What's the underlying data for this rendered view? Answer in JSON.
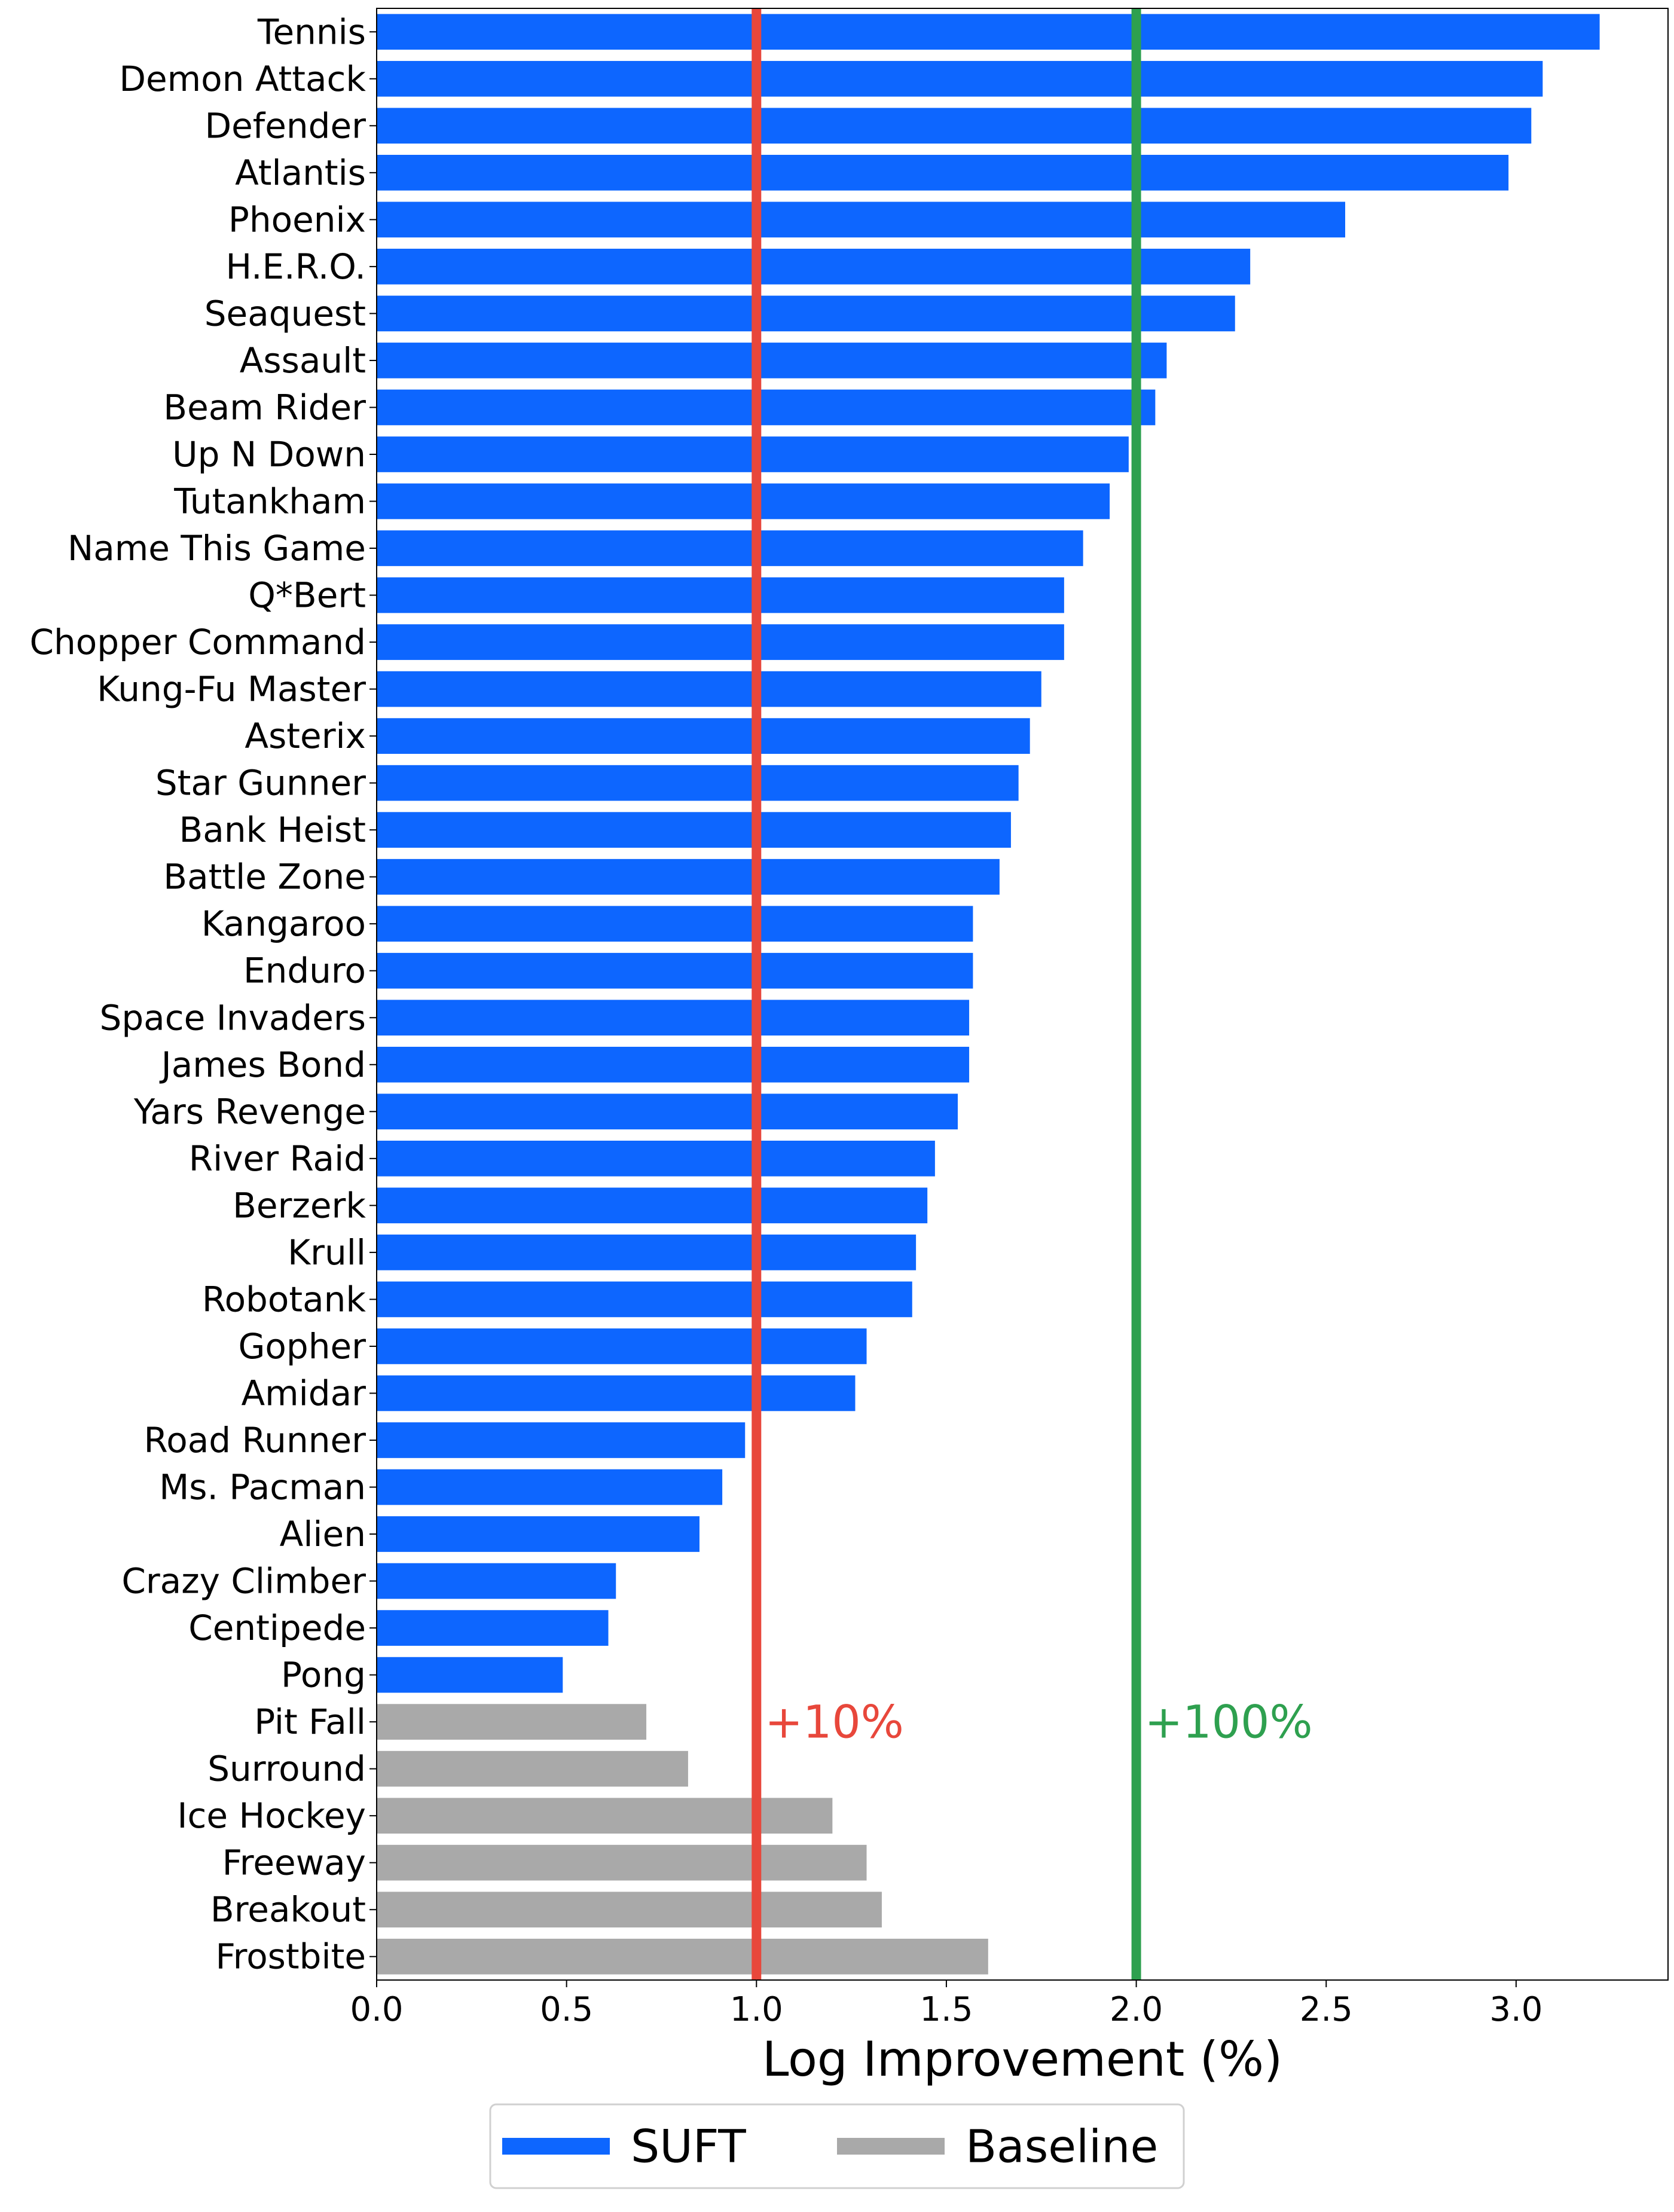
{
  "chart_data": {
    "type": "bar",
    "orientation": "horizontal",
    "xlabel": "Log Improvement (%)",
    "xlim": [
      0,
      3.4
    ],
    "xticks": [
      "0.0",
      "0.5",
      "1.0",
      "1.5",
      "2.0",
      "2.5",
      "3.0"
    ],
    "grid": false,
    "colors": {
      "SUFT": "#0d66ff",
      "Baseline": "#a9a9a9"
    },
    "bars": [
      {
        "category": "Tennis",
        "value": 3.22,
        "group": "SUFT"
      },
      {
        "category": "Demon Attack",
        "value": 3.07,
        "group": "SUFT"
      },
      {
        "category": "Defender",
        "value": 3.04,
        "group": "SUFT"
      },
      {
        "category": "Atlantis",
        "value": 2.98,
        "group": "SUFT"
      },
      {
        "category": "Phoenix",
        "value": 2.55,
        "group": "SUFT"
      },
      {
        "category": "H.E.R.O.",
        "value": 2.3,
        "group": "SUFT"
      },
      {
        "category": "Seaquest",
        "value": 2.26,
        "group": "SUFT"
      },
      {
        "category": "Assault",
        "value": 2.08,
        "group": "SUFT"
      },
      {
        "category": "Beam Rider",
        "value": 2.05,
        "group": "SUFT"
      },
      {
        "category": "Up N Down",
        "value": 1.98,
        "group": "SUFT"
      },
      {
        "category": "Tutankham",
        "value": 1.93,
        "group": "SUFT"
      },
      {
        "category": "Name This Game",
        "value": 1.86,
        "group": "SUFT"
      },
      {
        "category": "Q*Bert",
        "value": 1.81,
        "group": "SUFT"
      },
      {
        "category": "Chopper Command",
        "value": 1.81,
        "group": "SUFT"
      },
      {
        "category": "Kung-Fu Master",
        "value": 1.75,
        "group": "SUFT"
      },
      {
        "category": "Asterix",
        "value": 1.72,
        "group": "SUFT"
      },
      {
        "category": "Star Gunner",
        "value": 1.69,
        "group": "SUFT"
      },
      {
        "category": "Bank Heist",
        "value": 1.67,
        "group": "SUFT"
      },
      {
        "category": "Battle Zone",
        "value": 1.64,
        "group": "SUFT"
      },
      {
        "category": "Kangaroo",
        "value": 1.57,
        "group": "SUFT"
      },
      {
        "category": "Enduro",
        "value": 1.57,
        "group": "SUFT"
      },
      {
        "category": "Space Invaders",
        "value": 1.56,
        "group": "SUFT"
      },
      {
        "category": "James Bond",
        "value": 1.56,
        "group": "SUFT"
      },
      {
        "category": "Yars Revenge",
        "value": 1.53,
        "group": "SUFT"
      },
      {
        "category": "River Raid",
        "value": 1.47,
        "group": "SUFT"
      },
      {
        "category": "Berzerk",
        "value": 1.45,
        "group": "SUFT"
      },
      {
        "category": "Krull",
        "value": 1.42,
        "group": "SUFT"
      },
      {
        "category": "Robotank",
        "value": 1.41,
        "group": "SUFT"
      },
      {
        "category": "Gopher",
        "value": 1.29,
        "group": "SUFT"
      },
      {
        "category": "Amidar",
        "value": 1.26,
        "group": "SUFT"
      },
      {
        "category": "Road Runner",
        "value": 0.97,
        "group": "SUFT"
      },
      {
        "category": "Ms. Pacman",
        "value": 0.91,
        "group": "SUFT"
      },
      {
        "category": "Alien",
        "value": 0.85,
        "group": "SUFT"
      },
      {
        "category": "Crazy Climber",
        "value": 0.63,
        "group": "SUFT"
      },
      {
        "category": "Centipede",
        "value": 0.61,
        "group": "SUFT"
      },
      {
        "category": "Pong",
        "value": 0.49,
        "group": "SUFT"
      },
      {
        "category": "Pit Fall",
        "value": 0.71,
        "group": "Baseline"
      },
      {
        "category": "Surround",
        "value": 0.82,
        "group": "Baseline"
      },
      {
        "category": "Ice Hockey",
        "value": 1.2,
        "group": "Baseline"
      },
      {
        "category": "Freeway",
        "value": 1.29,
        "group": "Baseline"
      },
      {
        "category": "Breakout",
        "value": 1.33,
        "group": "Baseline"
      },
      {
        "category": "Frostbite",
        "value": 1.61,
        "group": "Baseline"
      }
    ],
    "reference_lines": [
      {
        "x": 1.0,
        "label": "+10%",
        "color": "#e8473b"
      },
      {
        "x": 2.0,
        "label": "+100%",
        "color": "#2ea04f"
      }
    ],
    "legend": {
      "placement": "bottom-center",
      "entries": [
        {
          "label": "SUFT",
          "color": "#0d66ff"
        },
        {
          "label": "Baseline",
          "color": "#a9a9a9"
        }
      ]
    }
  }
}
